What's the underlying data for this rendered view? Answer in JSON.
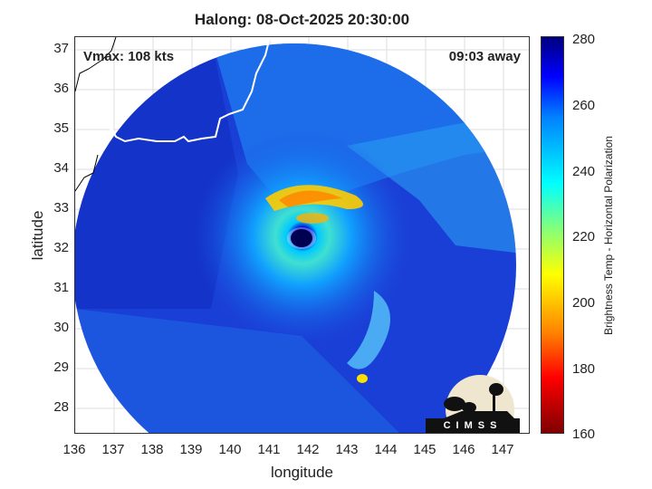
{
  "title": "Halong: 08-Oct-2025 20:30:00",
  "annotations": {
    "vmax": "Vmax: 108 kts",
    "away": "09:03 away"
  },
  "axes": {
    "xlabel": "longitude",
    "ylabel": "latitude",
    "x_ticks": [
      "136",
      "137",
      "138",
      "139",
      "140",
      "141",
      "142",
      "143",
      "144",
      "145",
      "146",
      "147"
    ],
    "y_ticks": [
      "37",
      "36",
      "35",
      "34",
      "33",
      "32",
      "31",
      "30",
      "29",
      "28"
    ],
    "xlim": [
      136,
      147.8
    ],
    "ylim": [
      27.3,
      37.3
    ]
  },
  "colorbar": {
    "label": "Brightness Temp - Horizontal Polarization",
    "ticks": [
      "280",
      "260",
      "240",
      "220",
      "200",
      "180",
      "160"
    ],
    "range": [
      160,
      280
    ]
  },
  "storm": {
    "eye_lon": 142.0,
    "eye_lat": 32.35
  },
  "logo": {
    "text": "CIMSS"
  },
  "colors": {
    "background_scene": "#1a3fd6",
    "coastline": "#ffffff",
    "eyewall": "#ff9900"
  }
}
